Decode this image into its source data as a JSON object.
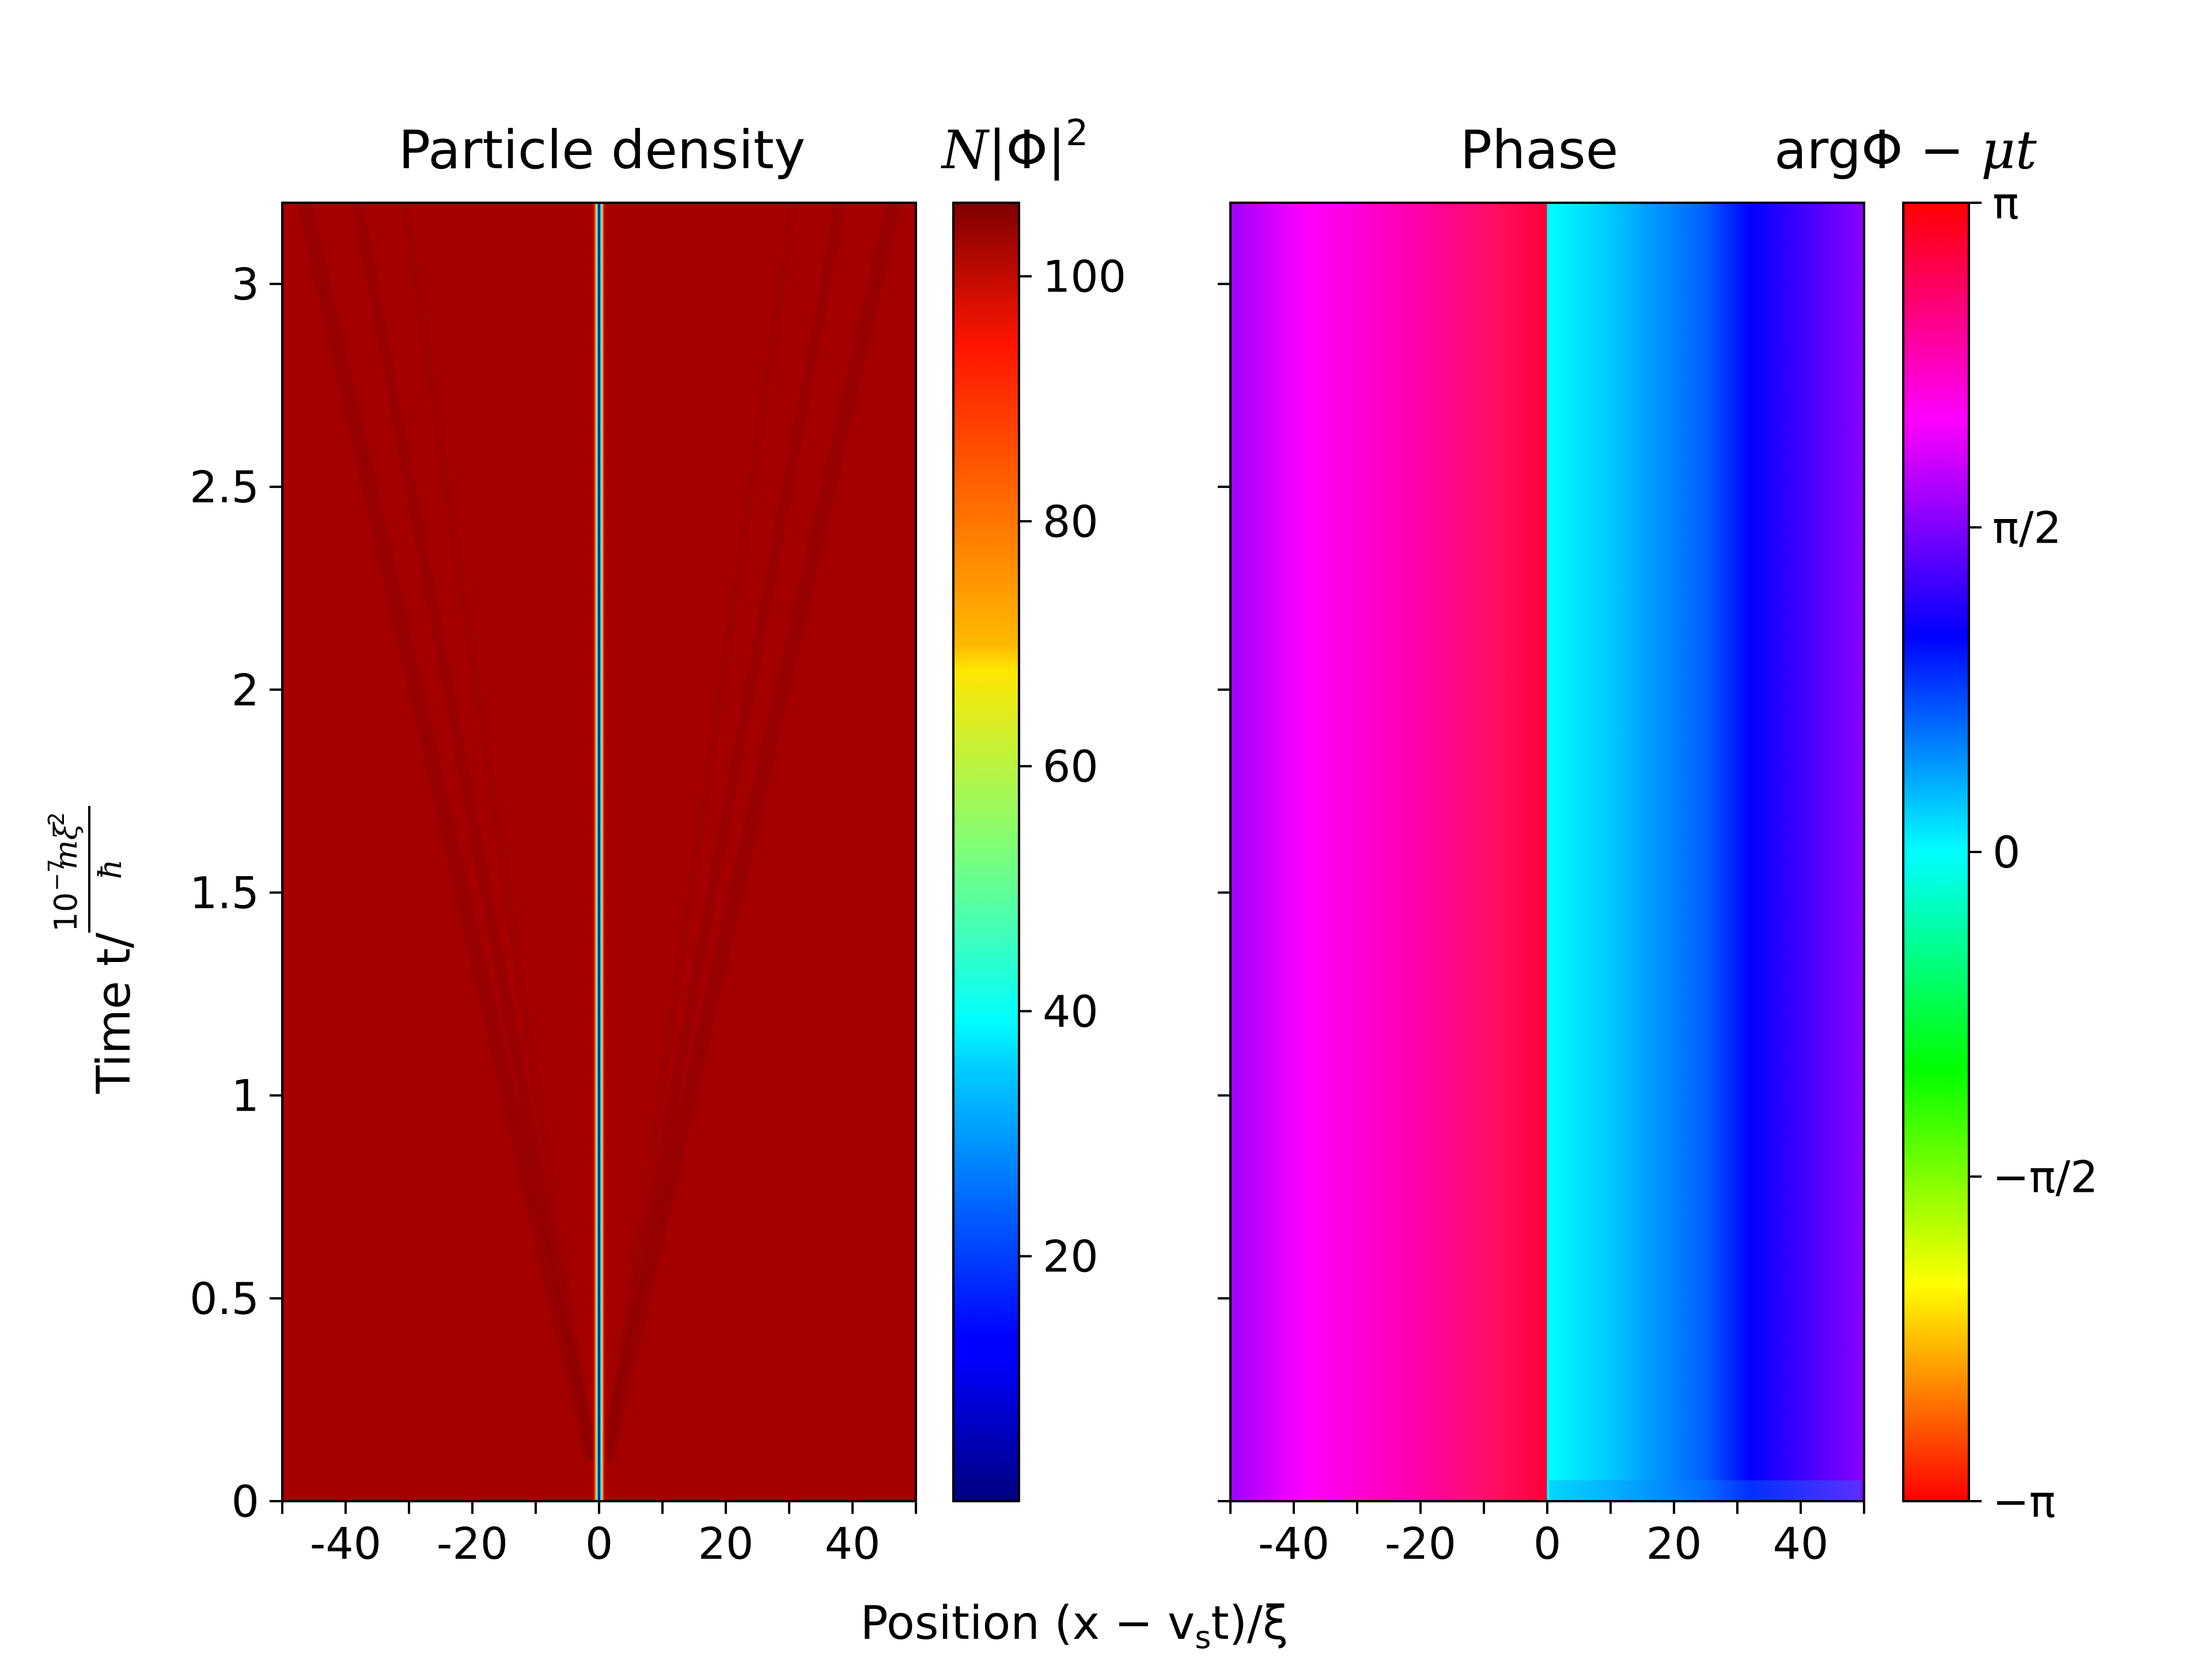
{
  "chart_data": [
    {
      "type": "heatmap",
      "title": "Particle density",
      "colorbar_label": "N|Φ|²",
      "colormap": "jet",
      "xlabel": "Position (x − v_s t)/ξ",
      "ylabel": "Time t/10⁻⁷ mξ²/ħ",
      "xlim": [
        -50,
        50
      ],
      "ylim": [
        0,
        3.2
      ],
      "x_ticks": [
        -40,
        -30,
        -20,
        -10,
        0,
        10,
        20,
        30,
        40
      ],
      "x_tick_labels": [
        "-40",
        "-20",
        "0",
        "20",
        "40"
      ],
      "x_tick_label_values": [
        -40,
        -20,
        0,
        20,
        40
      ],
      "y_ticks": [
        0,
        0.5,
        1,
        1.5,
        2,
        2.5,
        3
      ],
      "y_tick_labels": [
        "0",
        "0.5",
        "1",
        "1.5",
        "2",
        "2.5",
        "3"
      ],
      "colorbar_range": [
        0,
        106
      ],
      "colorbar_ticks": [
        20,
        40,
        60,
        80,
        100
      ],
      "colorbar_tick_labels": [
        "20",
        "40",
        "60",
        "80",
        "100"
      ],
      "background_density": 102,
      "soliton": {
        "center": 0,
        "min_density": 0,
        "width": 1.2
      },
      "ripples": {
        "origin_x": 0,
        "origin_t": 0.1,
        "speed_xi_per_time": 15,
        "fan_count": 3
      }
    },
    {
      "type": "heatmap",
      "title": "Phase",
      "colorbar_label": "argΦ − μt",
      "colormap": "hsv",
      "xlim": [
        -50,
        50
      ],
      "ylim": [
        0,
        3.2
      ],
      "x_ticks": [
        -40,
        -30,
        -20,
        -10,
        0,
        10,
        20,
        30,
        40
      ],
      "x_tick_labels": [
        "-40",
        "-20",
        "0",
        "20",
        "40"
      ],
      "x_tick_label_values": [
        -40,
        -20,
        0,
        20,
        40
      ],
      "y_ticks": [
        0,
        0.5,
        1,
        1.5,
        2,
        2.5,
        3
      ],
      "colorbar_range": [
        -3.14159,
        3.14159
      ],
      "colorbar_ticks": [
        -3.14159,
        -1.5708,
        0,
        1.5708,
        3.14159
      ],
      "colorbar_tick_labels": [
        "−π",
        "−π/2",
        "0",
        "π/2",
        "π"
      ],
      "phase_profile": {
        "left_edge_value": 1.85,
        "jump_position": 0,
        "value_left_of_jump": -3.1,
        "value_right_of_jump": 0.0,
        "right_edge_value": 1.85
      }
    }
  ],
  "labels": {
    "density_title": "Particle density",
    "phase_title": "Phase",
    "xlabel_shared": "Position (x − v",
    "xlabel_sub": "s",
    "xlabel_end": "t)/ξ",
    "ylabel_prefix": "Time t/",
    "ylabel_exp": "10",
    "ylabel_exp2": "−7",
    "ylabel_frac_num": "mξ",
    "ylabel_frac_sq": "2",
    "ylabel_frac_den": "ħ",
    "cb1_label_N": "N",
    "cb1_label_rest": "|Φ|",
    "cb1_label_sq": "2",
    "cb2_label_arg": "argΦ − ",
    "cb2_label_mu": "μt"
  }
}
